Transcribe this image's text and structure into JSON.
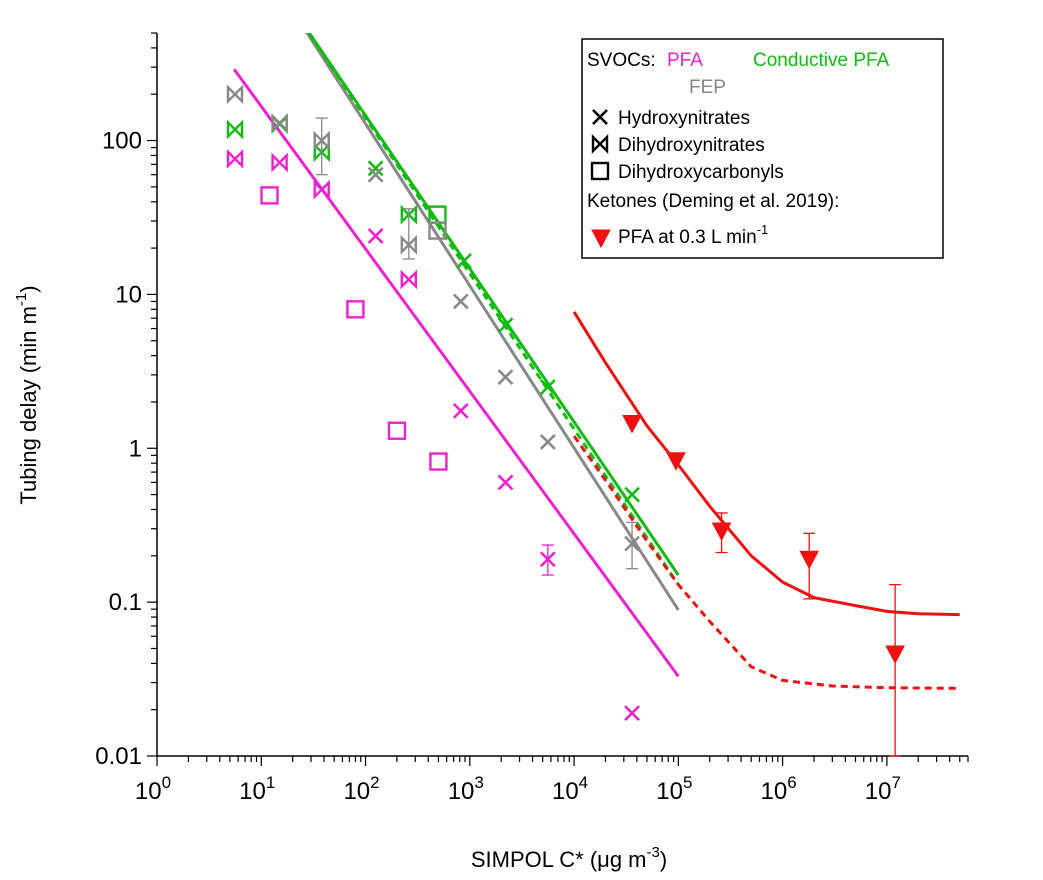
{
  "chart_data": {
    "type": "scatter",
    "xscale": "log",
    "yscale": "log",
    "xlabel": "SIMPOL C* (μg m",
    "xlabel_sup": "-3",
    "xlabel_end": ")",
    "ylabel": "Tubing delay (min m",
    "ylabel_sup": "-1",
    "ylabel_end": ")",
    "xlim": [
      1,
      60000000
    ],
    "ylim": [
      0.01,
      500
    ],
    "x_ticks": [
      1,
      10,
      100,
      1000,
      10000,
      100000,
      1000000,
      10000000
    ],
    "x_tick_labels": [
      "10",
      "10",
      "10",
      "10",
      "10",
      "10",
      "10",
      "10"
    ],
    "x_tick_exponents": [
      "0",
      "1",
      "2",
      "3",
      "4",
      "5",
      "6",
      "7"
    ],
    "y_ticks": [
      0.01,
      0.1,
      1,
      10,
      100
    ],
    "y_tick_labels": [
      "0.01",
      "0.1",
      "1",
      "10",
      "100"
    ],
    "colors": {
      "PFA": "#ee22cc",
      "Conductive PFA": "#11bb11",
      "FEP": "#888888",
      "Ketones": "#ee1111"
    },
    "legend": {
      "placement": "top-right",
      "svocs_label": "SVOCs:",
      "pfa_label": "PFA",
      "conductive_label": "Conductive PFA",
      "fep_label": "FEP",
      "hydroxynitrates_label": "Hydroxynitrates",
      "dihydroxynitrates_label": "Dihydroxynitrates",
      "dihydroxycarbonyls_label": "Dihydroxycarbonyls",
      "ketones_label": "Ketones (Deming et al. 2019):",
      "ketone_pfa_label": "PFA at 0.3 L min",
      "ketone_pfa_sup": "-1"
    },
    "series": [
      {
        "material": "PFA",
        "marker": "x",
        "points": [
          [
            125,
            24
          ],
          [
            820,
            1.75
          ],
          [
            2200,
            0.6
          ],
          [
            5600,
            0.19
          ],
          [
            36000,
            0.019
          ]
        ],
        "error_bars": [
          null,
          null,
          null,
          [
            0.15,
            0.235
          ],
          null
        ]
      },
      {
        "material": "PFA",
        "marker": "bowtie",
        "points": [
          [
            5.6,
            76
          ],
          [
            15,
            72
          ],
          [
            38,
            48
          ],
          [
            260,
            12.5
          ]
        ]
      },
      {
        "material": "PFA",
        "marker": "square",
        "points": [
          [
            12,
            44
          ],
          [
            80,
            8
          ],
          [
            200,
            1.3
          ],
          [
            500,
            0.82
          ]
        ]
      },
      {
        "material": "Conductive PFA",
        "marker": "x",
        "points": [
          [
            125,
            66
          ],
          [
            880,
            16.5
          ],
          [
            2200,
            6.3
          ],
          [
            5600,
            2.5
          ],
          [
            36000,
            0.5
          ]
        ]
      },
      {
        "material": "Conductive PFA",
        "marker": "bowtie",
        "points": [
          [
            5.6,
            118
          ],
          [
            15,
            128
          ],
          [
            38,
            84
          ],
          [
            260,
            33
          ]
        ]
      },
      {
        "material": "Conductive PFA",
        "marker": "square",
        "points": [
          [
            490,
            33
          ]
        ]
      },
      {
        "material": "FEP",
        "marker": "x",
        "points": [
          [
            125,
            60
          ],
          [
            820,
            9
          ],
          [
            2200,
            2.9
          ],
          [
            5600,
            1.1
          ],
          [
            36000,
            0.24
          ]
        ],
        "error_bars": [
          null,
          null,
          null,
          null,
          [
            0.165,
            0.33
          ]
        ]
      },
      {
        "material": "FEP",
        "marker": "bowtie",
        "points": [
          [
            5.6,
            200
          ],
          [
            15,
            130
          ],
          [
            38,
            100
          ],
          [
            260,
            21
          ]
        ],
        "error_bars": [
          null,
          null,
          [
            60,
            140
          ],
          [
            17,
            36
          ]
        ]
      },
      {
        "material": "FEP",
        "marker": "square",
        "points": [
          [
            490,
            26
          ]
        ]
      },
      {
        "material": "Ketones",
        "marker": "triangle-down",
        "points": [
          [
            36000,
            1.45
          ],
          [
            95000,
            0.83
          ],
          [
            260000,
            0.29
          ],
          [
            1800000,
            0.19
          ],
          [
            12000000,
            0.046
          ]
        ],
        "error_bars": [
          null,
          null,
          [
            0.21,
            0.38
          ],
          [
            0.105,
            0.28
          ],
          [
            0.01,
            0.13
          ]
        ]
      }
    ],
    "fit_lines": [
      {
        "material": "PFA",
        "style": "solid",
        "points": [
          [
            5.5,
            290
          ],
          [
            100000,
            0.033
          ]
        ]
      },
      {
        "material": "FEP",
        "style": "solid",
        "points": [
          [
            12,
            1200
          ],
          [
            100000,
            0.089
          ]
        ]
      },
      {
        "material": "Conductive PFA",
        "style": "dashed",
        "points": [
          [
            12,
            1200
          ],
          [
            100000,
            0.13
          ]
        ]
      },
      {
        "material": "Conductive PFA",
        "style": "solid",
        "points": [
          [
            12,
            1200
          ],
          [
            100000,
            0.15
          ]
        ]
      },
      {
        "material": "Ketones",
        "style": "solid",
        "points": [
          [
            10000,
            7.7
          ],
          [
            20000,
            3.6
          ],
          [
            50000,
            1.4
          ],
          [
            100000,
            0.78
          ],
          [
            200000,
            0.42
          ],
          [
            500000,
            0.2
          ],
          [
            1000000,
            0.135
          ],
          [
            2000000,
            0.107
          ],
          [
            5000000,
            0.095
          ],
          [
            10000000,
            0.087
          ],
          [
            20000000,
            0.084
          ],
          [
            50000000,
            0.083
          ]
        ]
      },
      {
        "material": "Ketones",
        "style": "dashed",
        "points": [
          [
            10000,
            1.2
          ],
          [
            20000,
            0.62
          ],
          [
            50000,
            0.25
          ],
          [
            100000,
            0.13
          ],
          [
            200000,
            0.075
          ],
          [
            500000,
            0.038
          ],
          [
            1000000,
            0.031
          ],
          [
            3000000,
            0.0285
          ],
          [
            10000000,
            0.0278
          ],
          [
            50000000,
            0.0275
          ]
        ]
      }
    ]
  }
}
